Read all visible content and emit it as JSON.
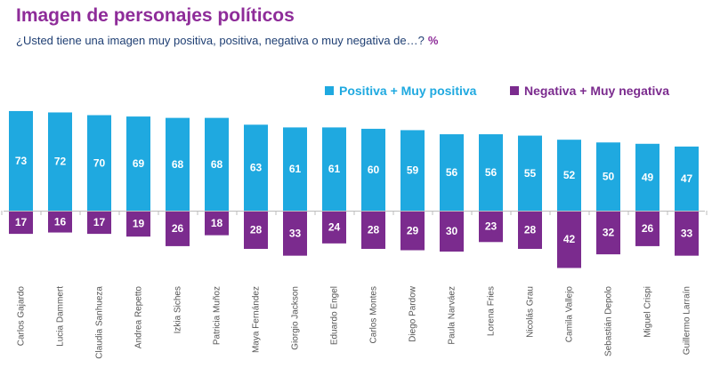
{
  "header": {
    "title": "Imagen de personajes políticos",
    "subtitle": "¿Usted tiene una imagen muy positiva, positiva, negativa o muy negativa de…?",
    "unit": "%"
  },
  "colors": {
    "positive": "#1fa9e0",
    "negative": "#7b2b8e",
    "title": "#8e2c99",
    "subtitle": "#1f3f73"
  },
  "chart_data": {
    "type": "bar",
    "title": "Imagen de personajes políticos",
    "subtitle": "¿Usted tiene una imagen muy positiva, positiva, negativa o muy negativa de…?",
    "unit": "%",
    "legend_position": "top-right",
    "grid": false,
    "categories": [
      "Carlos Gajardo",
      "Lucia Dammert",
      "Claudia Sanhueza",
      "Andrea Repetto",
      "Izkia Siches",
      "Patricia Muñoz",
      "Maya Fernández",
      "Giorgio Jackson",
      "Eduardo Engel",
      "Carlos Montes",
      "Diego Pardow",
      "Paula Narváez",
      "Lorena Fries",
      "Nicolás Grau",
      "Camila Vallejo",
      "Sebastián Depolo",
      "Miguel Crispi",
      "Guillermo Larraín"
    ],
    "series": [
      {
        "name": "Positiva + Muy positiva",
        "values": [
          73,
          72,
          70,
          69,
          68,
          68,
          63,
          61,
          61,
          60,
          59,
          56,
          56,
          55,
          52,
          50,
          49,
          47
        ]
      },
      {
        "name": "Negativa + Muy negativa",
        "values": [
          17,
          16,
          17,
          19,
          26,
          18,
          28,
          33,
          24,
          28,
          29,
          30,
          23,
          28,
          42,
          32,
          26,
          33
        ]
      }
    ]
  }
}
